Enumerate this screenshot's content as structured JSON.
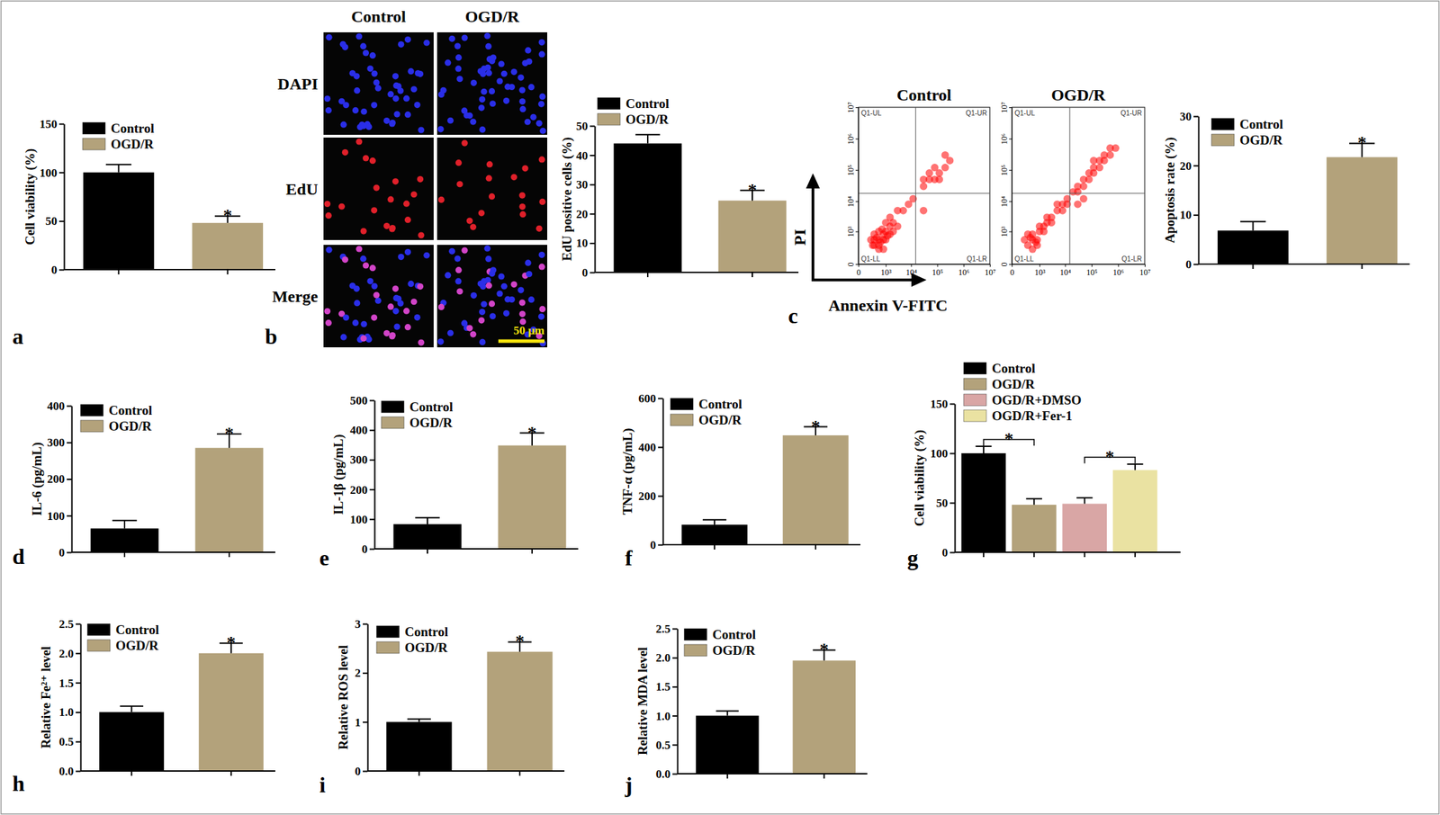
{
  "chart_data": [
    {
      "type": "bar",
      "panel": "a",
      "y_label": "Cell viability (%)",
      "categories": [
        "Control",
        "OGD/R"
      ],
      "values": [
        100,
        48
      ],
      "errors": [
        8,
        7
      ],
      "colors": [
        "#000000",
        "#b3a27b"
      ],
      "ylim": [
        0,
        150
      ],
      "yticks": [
        0,
        50,
        100,
        150
      ],
      "legend": "top left",
      "tick_labels": "y",
      "annotations": [
        {
          "between": [
            1,
            1
          ],
          "text": "*"
        }
      ]
    },
    {
      "type": "bar",
      "y_label": "EdU positive cells (%)",
      "categories": [
        "Control",
        "OGD/R"
      ],
      "values": [
        44,
        24.5
      ],
      "errors": [
        3,
        3.5
      ],
      "colors": [
        "#000000",
        "#b3a27b"
      ],
      "ylim": [
        0,
        50
      ],
      "yticks": [
        0,
        10,
        20,
        30,
        40,
        50
      ],
      "legend": "top left",
      "tick_labels": "y",
      "annotations": [
        {
          "between": [
            1,
            1
          ],
          "text": "*"
        }
      ]
    },
    {
      "type": "scatter",
      "panel": "c",
      "title": "Control",
      "x_label": "Annexin V-FITC",
      "y_label": "PI",
      "log": true,
      "color": "#ff0000",
      "xlim": [
        0,
        10000000
      ],
      "ylim": [
        0,
        10000000
      ],
      "xticks": [
        {
          "value": 0,
          "label": "0"
        },
        {
          "value": 1000,
          "label": "10³"
        },
        {
          "value": 10000,
          "label": "10⁴"
        },
        {
          "value": 100000,
          "label": "10⁵"
        },
        {
          "value": 1000000,
          "label": "10⁶"
        },
        {
          "value": 10000000,
          "label": "10⁷"
        }
      ],
      "yticks": [
        {
          "value": 0,
          "label": "0"
        },
        {
          "value": 1000,
          "label": "10³"
        },
        {
          "value": 10000,
          "label": "10⁴"
        },
        {
          "value": 100000,
          "label": "10⁵"
        },
        {
          "value": 1000000,
          "label": "10⁶"
        },
        {
          "value": 10000000,
          "label": "10⁷"
        }
      ],
      "gate_x": 15000,
      "gate_y": 18000,
      "quadrant_labels": [
        "Q1-UL",
        "Q1-UR",
        "Q1-LL",
        "Q1-LR"
      ],
      "x": [
        300,
        500,
        500,
        800,
        300,
        800,
        1000,
        500,
        1500,
        200,
        800,
        1500,
        1000,
        2000,
        300,
        1000,
        2000,
        500,
        3000,
        1500,
        5000,
        8000,
        3000,
        12000,
        30000,
        50000,
        80000,
        120000,
        200000,
        50000,
        80000,
        300000,
        120000,
        200000,
        30000,
        30000,
        400,
        600,
        700,
        1200,
        250
      ],
      "values": [
        300,
        300,
        500,
        500,
        800,
        800,
        1000,
        1000,
        800,
        500,
        200,
        1500,
        500,
        1000,
        500,
        2000,
        2000,
        200,
        1500,
        3000,
        5000,
        8000,
        5000,
        12000,
        30000,
        50000,
        50000,
        80000,
        120000,
        80000,
        120000,
        200000,
        50000,
        300000,
        50000,
        5000,
        600,
        400,
        1200,
        700,
        300
      ]
    },
    {
      "type": "scatter",
      "title": "OGD/R",
      "log": true,
      "color": "#ff0000",
      "xlim": [
        0,
        10000000
      ],
      "ylim": [
        0,
        10000000
      ],
      "xticks": [
        {
          "value": 0,
          "label": "0"
        },
        {
          "value": 1000,
          "label": "10³"
        },
        {
          "value": 10000,
          "label": "10⁴"
        },
        {
          "value": 100000,
          "label": "10⁵"
        },
        {
          "value": 1000000,
          "label": "10⁶"
        },
        {
          "value": 10000000,
          "label": "10⁷"
        }
      ],
      "yticks": [
        {
          "value": 0,
          "label": "0"
        },
        {
          "value": 1000,
          "label": "10³"
        },
        {
          "value": 10000,
          "label": "10⁴"
        },
        {
          "value": 100000,
          "label": "10⁵"
        },
        {
          "value": 1000000,
          "label": "10⁶"
        },
        {
          "value": 10000000,
          "label": "10⁷"
        }
      ],
      "gate_x": 15000,
      "gate_y": 18000,
      "quadrant_labels": [
        "Q1-UL",
        "Q1-UR",
        "Q1-LL",
        "Q1-LR"
      ],
      "x": [
        300,
        500,
        800,
        500,
        1000,
        300,
        800,
        1500,
        1000,
        2000,
        200,
        500,
        1500,
        3000,
        2000,
        3000,
        5000,
        8000,
        5000,
        8000,
        12000,
        12000,
        20000,
        30000,
        30000,
        50000,
        50000,
        80000,
        80000,
        120000,
        120000,
        200000,
        200000,
        300000,
        300000,
        500000,
        500000,
        120000,
        800000,
        50000,
        30000,
        400,
        700
      ],
      "values": [
        300,
        500,
        500,
        800,
        1000,
        800,
        300,
        1000,
        1500,
        2000,
        500,
        200,
        1500,
        2000,
        3000,
        3000,
        5000,
        5000,
        8000,
        8000,
        12000,
        8000,
        20000,
        30000,
        20000,
        50000,
        30000,
        50000,
        80000,
        80000,
        120000,
        120000,
        200000,
        200000,
        300000,
        300000,
        500000,
        200000,
        500000,
        12000,
        8000,
        600,
        400
      ]
    },
    {
      "type": "bar",
      "y_label": "Apoptosis rate (%)",
      "categories": [
        "Control",
        "OGD/R"
      ],
      "values": [
        6.8,
        21.7
      ],
      "errors": [
        1.8,
        2.8
      ],
      "colors": [
        "#000000",
        "#b3a27b"
      ],
      "ylim": [
        0,
        30
      ],
      "yticks": [
        0,
        10,
        20,
        30
      ],
      "legend": "top left",
      "tick_labels": "y",
      "annotations": [
        {
          "between": [
            1,
            1
          ],
          "text": "*"
        }
      ]
    },
    {
      "type": "bar",
      "panel": "d",
      "y_label": "IL-6 (pg/mL)",
      "categories": [
        "Control",
        "OGD/R"
      ],
      "values": [
        65,
        285
      ],
      "errors": [
        22,
        38
      ],
      "colors": [
        "#000000",
        "#b3a27b"
      ],
      "ylim": [
        0,
        400
      ],
      "yticks": [
        0,
        100,
        200,
        300,
        400
      ],
      "legend": "top left",
      "tick_labels": "y",
      "annotations": [
        {
          "between": [
            1,
            1
          ],
          "text": "*"
        }
      ]
    },
    {
      "type": "bar",
      "panel": "e",
      "y_label": "IL-1β (pg/mL)",
      "categories": [
        "Control",
        "OGD/R"
      ],
      "values": [
        83,
        348
      ],
      "errors": [
        22,
        42
      ],
      "colors": [
        "#000000",
        "#b3a27b"
      ],
      "ylim": [
        0,
        500
      ],
      "yticks": [
        0,
        100,
        200,
        300,
        400,
        500
      ],
      "legend": "top left",
      "tick_labels": "y",
      "annotations": [
        {
          "between": [
            1,
            1
          ],
          "text": "*"
        }
      ]
    },
    {
      "type": "bar",
      "panel": "f",
      "y_label": "TNF-α (pg/mL)",
      "categories": [
        "Control",
        "OGD/R"
      ],
      "values": [
        82,
        448
      ],
      "errors": [
        20,
        35
      ],
      "colors": [
        "#000000",
        "#b3a27b"
      ],
      "ylim": [
        0,
        600
      ],
      "yticks": [
        0,
        200,
        400,
        600
      ],
      "legend": "top left",
      "tick_labels": "y",
      "annotations": [
        {
          "between": [
            1,
            1
          ],
          "text": "*"
        }
      ]
    },
    {
      "type": "bar",
      "panel": "g",
      "y_label": "Cell viability (%)",
      "categories": [
        "Control",
        "OGD/R",
        "OGD/R+DMSO",
        "OGD/R+Fer-1"
      ],
      "values": [
        100,
        48,
        49,
        83
      ],
      "errors": [
        7,
        6,
        6,
        6
      ],
      "colors": [
        "#000000",
        "#b3a27b",
        "#d9a6a5",
        "#eae2a2"
      ],
      "ylim": [
        0,
        150
      ],
      "yticks": [
        0,
        50,
        100,
        150
      ],
      "legend": "top left",
      "tick_labels": "y",
      "annotations": [
        {
          "between": [
            0,
            1
          ],
          "text": "*"
        },
        {
          "between": [
            2,
            3
          ],
          "text": "*"
        }
      ]
    },
    {
      "type": "bar",
      "panel": "h",
      "y_label": "Relative Fe²⁺ level",
      "categories": [
        "Control",
        "OGD/R"
      ],
      "values": [
        1.0,
        2.0
      ],
      "errors": [
        0.1,
        0.17
      ],
      "colors": [
        "#000000",
        "#b3a27b"
      ],
      "ylim": [
        0,
        2.5
      ],
      "yticks": [
        {
          "value": 0,
          "label": "0.0"
        },
        0.5,
        {
          "value": 1,
          "label": "1.0"
        },
        1.5,
        {
          "value": 2,
          "label": "2.0"
        },
        2.5
      ],
      "legend": "top left",
      "tick_labels": "y",
      "annotations": [
        {
          "between": [
            1,
            1
          ],
          "text": "*"
        }
      ]
    },
    {
      "type": "bar",
      "panel": "i",
      "y_label": "Relative ROS level",
      "categories": [
        "Control",
        "OGD/R"
      ],
      "values": [
        1.0,
        2.43
      ],
      "errors": [
        0.06,
        0.2
      ],
      "colors": [
        "#000000",
        "#b3a27b"
      ],
      "ylim": [
        0,
        3
      ],
      "yticks": [
        0,
        1,
        2,
        3
      ],
      "legend": "top left",
      "tick_labels": "y",
      "annotations": [
        {
          "between": [
            1,
            1
          ],
          "text": "*"
        }
      ]
    },
    {
      "type": "bar",
      "panel": "j",
      "y_label": "Relative MDA level",
      "categories": [
        "Control",
        "OGD/R"
      ],
      "values": [
        1.0,
        1.95
      ],
      "errors": [
        0.08,
        0.18
      ],
      "colors": [
        "#000000",
        "#b3a27b"
      ],
      "ylim": [
        0,
        2.5
      ],
      "yticks": [
        {
          "value": 0,
          "label": "0.0"
        },
        0.5,
        {
          "value": 1,
          "label": "1.0"
        },
        1.5,
        {
          "value": 2,
          "label": "2.0"
        },
        2.5
      ],
      "legend": "top left",
      "tick_labels": "y",
      "annotations": [
        {
          "between": [
            1,
            1
          ],
          "text": "*"
        }
      ]
    }
  ],
  "micrographs": {
    "panel": "b",
    "columns": [
      "Control",
      "OGD/R"
    ],
    "rows": [
      "DAPI",
      "EdU",
      "Merge"
    ],
    "scale_bar": "50 μm"
  }
}
